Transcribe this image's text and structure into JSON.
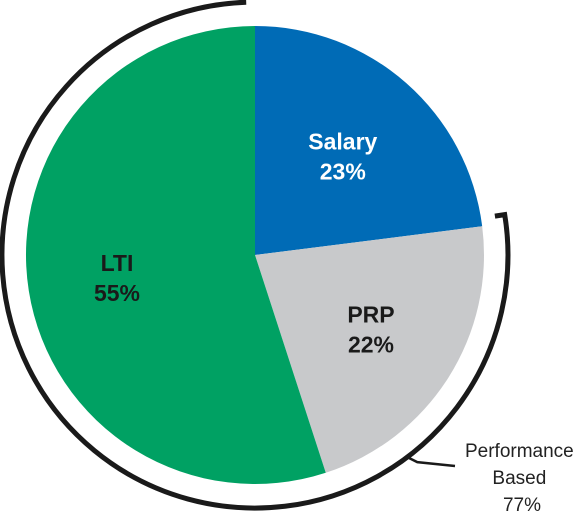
{
  "chart_data": {
    "type": "pie",
    "title": "",
    "slices": [
      {
        "label": "Salary",
        "value": 23,
        "value_text": "23%",
        "color": "#006bb6",
        "text_color": "#ffffff"
      },
      {
        "label": "PRP",
        "value": 22,
        "value_text": "22%",
        "color": "#c8c9cb",
        "text_color": "#1a1a1a"
      },
      {
        "label": "LTI",
        "value": 55,
        "value_text": "55%",
        "color": "#00a163",
        "text_color": "#1a1a1a"
      }
    ],
    "start_angle_deg": 0,
    "direction": "clockwise",
    "grid": false,
    "legend": "none",
    "group_annotation": {
      "covers": [
        "PRP",
        "LTI"
      ],
      "label_lines": [
        "Performance",
        "Based",
        "77%"
      ],
      "color": "#1a1a1a"
    }
  }
}
